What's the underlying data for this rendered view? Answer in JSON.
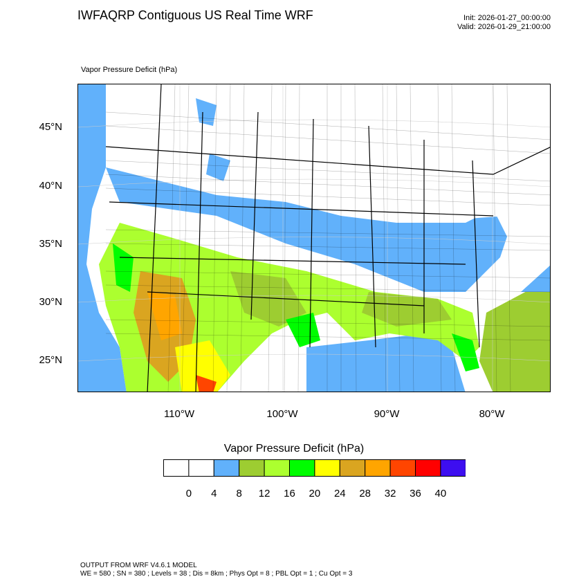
{
  "header": {
    "title": "IWFAQRP Contiguous US Real Time WRF",
    "init": "Init: 2026-01-27_00:00:00",
    "valid": "Valid: 2026-01-29_21:00:00"
  },
  "map": {
    "field_label": "Vapor Pressure Deficit   (hPa)",
    "lat_labels": [
      "45°N",
      "40°N",
      "35°N",
      "30°N",
      "25°N"
    ],
    "lon_labels": [
      "110°W",
      "100°W",
      "90°W",
      "80°W"
    ]
  },
  "colorbar": {
    "title": "Vapor Pressure Deficit  (hPa)",
    "levels": [
      "0",
      "4",
      "8",
      "12",
      "16",
      "20",
      "24",
      "28",
      "32",
      "36",
      "40"
    ],
    "colors": [
      "#ffffff",
      "#ffffff",
      "#61b1fb",
      "#9dcd31",
      "#acff2f",
      "#00fd00",
      "#ffff00",
      "#daa520",
      "#ffa500",
      "#ff4500",
      "#ff0000",
      "#3d0ef0"
    ]
  },
  "footer": {
    "line1": "OUTPUT FROM WRF V4.6.1 MODEL",
    "line2": "WE = 580 ; SN = 380 ; Levels = 38 ; Dis = 8km ; Phys Opt = 8 ; PBL Opt = 1 ; Cu Opt = 3"
  }
}
